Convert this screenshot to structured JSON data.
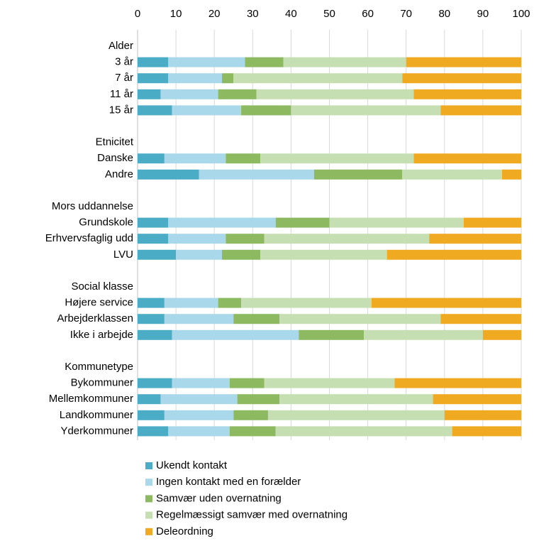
{
  "chart_data": {
    "type": "stacked-bar-horizontal",
    "categories": [
      "Alder",
      "3 år",
      "7 år",
      "11 år",
      "15 år",
      null,
      "Etnicitet",
      "Danske",
      "Andre",
      null,
      "Mors uddannelse",
      "Grundskole",
      "Erhvervsfaglig udd",
      "LVU",
      null,
      "Social klasse",
      "Højere service",
      "Arbejderklassen",
      "Ikke i arbejde",
      null,
      "Kommunetype",
      "Bykommuner",
      "Mellemkommuner",
      "Landkommuner",
      "Yderkommuner"
    ],
    "series": [
      {
        "name": "Ukendt kontakt",
        "color": "#4bacc6",
        "values": [
          null,
          8,
          8,
          6,
          9,
          null,
          null,
          7,
          16,
          null,
          null,
          8,
          8,
          10,
          null,
          null,
          7,
          7,
          9,
          null,
          null,
          9,
          6,
          7,
          8
        ]
      },
      {
        "name": "Ingen kontakt med en forælder",
        "color": "#a9d8ea",
        "values": [
          null,
          20,
          14,
          15,
          18,
          null,
          null,
          16,
          30,
          null,
          null,
          28,
          15,
          12,
          null,
          null,
          14,
          18,
          33,
          null,
          null,
          15,
          20,
          18,
          16
        ]
      },
      {
        "name": "Samvær uden overnatning",
        "color": "#8db960",
        "values": [
          null,
          10,
          3,
          10,
          13,
          null,
          null,
          9,
          23,
          null,
          null,
          14,
          10,
          10,
          null,
          null,
          6,
          12,
          17,
          null,
          null,
          9,
          11,
          9,
          12
        ]
      },
      {
        "name": "Regelmæssigt samvær med overnatning",
        "color": "#c6dfb2",
        "values": [
          null,
          32,
          44,
          41,
          39,
          null,
          null,
          40,
          26,
          null,
          null,
          35,
          43,
          33,
          null,
          null,
          34,
          42,
          31,
          null,
          null,
          34,
          40,
          46,
          46
        ]
      },
      {
        "name": "Deleordning",
        "color": "#f0aa22",
        "values": [
          null,
          30,
          31,
          28,
          21,
          null,
          null,
          28,
          5,
          null,
          null,
          15,
          24,
          35,
          null,
          null,
          39,
          21,
          10,
          null,
          null,
          33,
          23,
          20,
          18
        ]
      }
    ],
    "xlim": [
      0,
      100
    ],
    "xticks": [
      0,
      10,
      20,
      30,
      40,
      50,
      60,
      70,
      80,
      90,
      100
    ],
    "grid": true
  }
}
